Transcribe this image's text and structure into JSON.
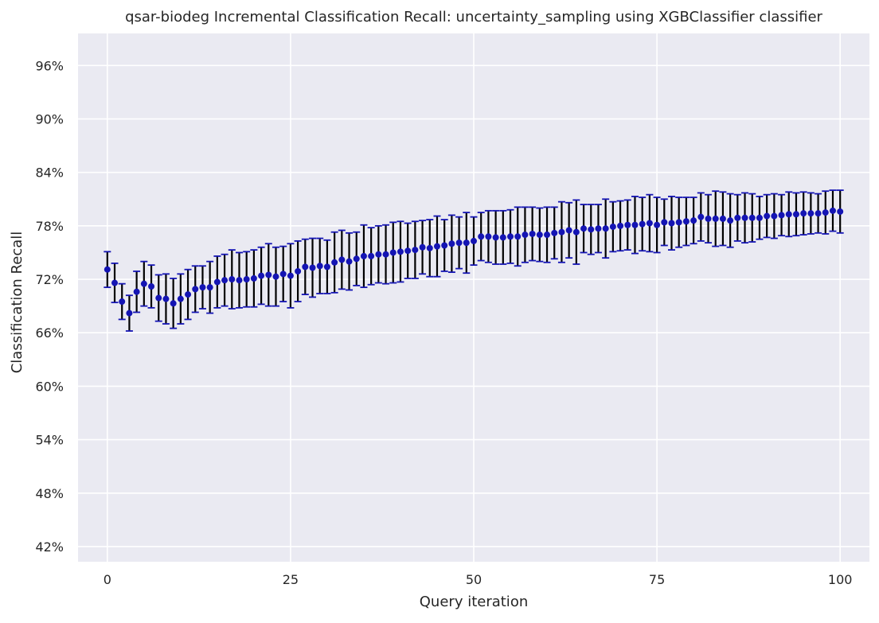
{
  "chart_data": {
    "type": "scatter",
    "title": "qsar-biodeg Incremental Classification Recall: uncertainty_sampling using XGBClassifier classifier",
    "xlabel": "Query iteration",
    "ylabel": "Classification Recall",
    "xlim": [
      -4,
      104
    ],
    "ylim": [
      40.3,
      99.6
    ],
    "xticks": [
      0,
      25,
      50,
      75,
      100
    ],
    "xtick_labels": [
      "0",
      "25",
      "50",
      "75",
      "100"
    ],
    "yticks": [
      42,
      48,
      54,
      60,
      66,
      72,
      78,
      84,
      90,
      96
    ],
    "ytick_labels": [
      "42%",
      "48%",
      "54%",
      "60%",
      "66%",
      "72%",
      "78%",
      "84%",
      "90%",
      "96%"
    ],
    "grid": true,
    "legend": "none",
    "colors": {
      "background": "#eaeaf2",
      "grid": "#ffffff",
      "marker": "#1414b4",
      "error_bar": "#000000",
      "cap": "#1414b4"
    },
    "series": [
      {
        "x": [
          0,
          1,
          2,
          3,
          4,
          5,
          6,
          7,
          8,
          9,
          10,
          11,
          12,
          13,
          14,
          15,
          16,
          17,
          18,
          19,
          20,
          21,
          22,
          23,
          24,
          25,
          26,
          27,
          28,
          29,
          30,
          31,
          32,
          33,
          34,
          35,
          36,
          37,
          38,
          39,
          40,
          41,
          42,
          43,
          44,
          45,
          46,
          47,
          48,
          49,
          50,
          51,
          52,
          53,
          54,
          55,
          56,
          57,
          58,
          59,
          60,
          61,
          62,
          63,
          64,
          65,
          66,
          67,
          68,
          69,
          70,
          71,
          72,
          73,
          74,
          75,
          76,
          77,
          78,
          79,
          80,
          81,
          82,
          83,
          84,
          85,
          86,
          87,
          88,
          89,
          90,
          91,
          92,
          93,
          94,
          95,
          96,
          97,
          98,
          99,
          100
        ],
        "y": [
          73.1,
          71.6,
          69.5,
          68.2,
          70.6,
          71.5,
          71.2,
          69.9,
          69.8,
          69.3,
          69.8,
          70.3,
          70.9,
          71.1,
          71.1,
          71.7,
          71.9,
          72.0,
          71.9,
          72.0,
          72.1,
          72.4,
          72.5,
          72.3,
          72.6,
          72.4,
          72.9,
          73.4,
          73.3,
          73.5,
          73.4,
          73.9,
          74.2,
          74.0,
          74.3,
          74.6,
          74.6,
          74.8,
          74.8,
          75.0,
          75.1,
          75.2,
          75.3,
          75.6,
          75.5,
          75.7,
          75.8,
          76.0,
          76.1,
          76.1,
          76.3,
          76.8,
          76.8,
          76.7,
          76.7,
          76.8,
          76.8,
          77.0,
          77.1,
          77.0,
          77.0,
          77.2,
          77.3,
          77.5,
          77.3,
          77.7,
          77.6,
          77.7,
          77.7,
          77.9,
          78.0,
          78.1,
          78.1,
          78.2,
          78.3,
          78.1,
          78.4,
          78.3,
          78.4,
          78.5,
          78.6,
          79.0,
          78.8,
          78.8,
          78.8,
          78.6,
          78.9,
          78.9,
          78.9,
          78.9,
          79.1,
          79.1,
          79.2,
          79.3,
          79.3,
          79.4,
          79.4,
          79.4,
          79.5,
          79.7,
          79.6
        ],
        "err": [
          2.0,
          2.2,
          2.0,
          2.0,
          2.3,
          2.5,
          2.4,
          2.6,
          2.8,
          2.8,
          2.8,
          2.8,
          2.6,
          2.4,
          2.9,
          2.9,
          2.9,
          3.3,
          3.1,
          3.1,
          3.2,
          3.2,
          3.5,
          3.3,
          3.1,
          3.6,
          3.4,
          3.1,
          3.3,
          3.1,
          3.0,
          3.4,
          3.3,
          3.2,
          3.0,
          3.5,
          3.2,
          3.2,
          3.3,
          3.4,
          3.4,
          3.1,
          3.2,
          3.0,
          3.2,
          3.4,
          2.9,
          3.2,
          2.9,
          3.4,
          2.7,
          2.7,
          2.9,
          3.0,
          3.0,
          3.0,
          3.3,
          3.1,
          3.0,
          3.0,
          3.1,
          2.9,
          3.4,
          3.1,
          3.6,
          2.7,
          2.8,
          2.7,
          3.3,
          2.8,
          2.8,
          2.8,
          3.2,
          3.0,
          3.2,
          3.1,
          2.6,
          3.0,
          2.8,
          2.7,
          2.6,
          2.7,
          2.7,
          3.1,
          3.0,
          3.0,
          2.6,
          2.8,
          2.7,
          2.4,
          2.4,
          2.5,
          2.3,
          2.5,
          2.4,
          2.4,
          2.3,
          2.2,
          2.4,
          2.3,
          2.4
        ]
      }
    ]
  }
}
